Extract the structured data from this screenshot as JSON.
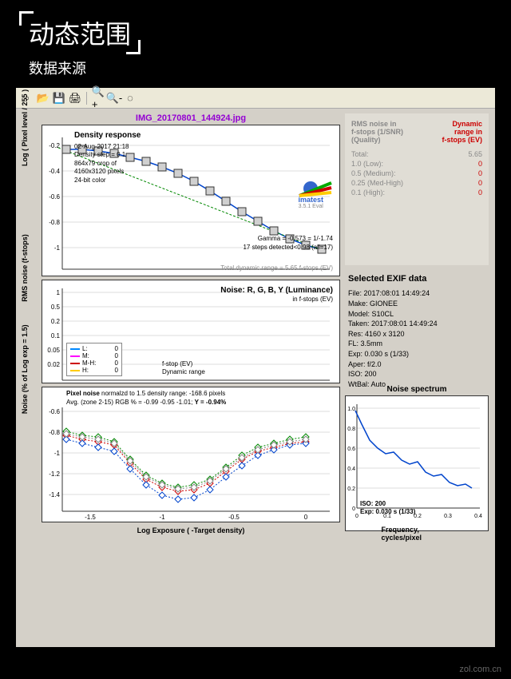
{
  "header": {
    "title": "动态范围",
    "subtitle": "数据来源"
  },
  "filename": "IMG_20170801_144924.jpg",
  "watermark": "zol.com.cn",
  "chart1": {
    "ylabel": "Log ( Pixel level / 255 )",
    "title": "Density response",
    "meta": [
      "02-Aug-2017 21:18",
      "Density step = 0.1",
      "864x79 crop of",
      "4160x3120 pixels",
      "24-bit color"
    ],
    "gamma": "Gamma = -0.573 = 1/-1.74",
    "steps": "17 steps detected<0.98 (all=17)",
    "dr": "Total dynamic range = 5.65 f-stops (EV)",
    "logo": "imatest",
    "logosub": "3.5.1 Eval",
    "yticks": [
      "-0.2",
      "-0.4",
      "-0.6",
      "-0.8",
      "-1"
    ],
    "data": [
      [
        20,
        30
      ],
      [
        40,
        30
      ],
      [
        60,
        32
      ],
      [
        80,
        35
      ],
      [
        100,
        40
      ],
      [
        120,
        45
      ],
      [
        140,
        52
      ],
      [
        160,
        60
      ],
      [
        180,
        70
      ],
      [
        200,
        82
      ],
      [
        220,
        95
      ],
      [
        240,
        108
      ],
      [
        260,
        120
      ],
      [
        280,
        132
      ],
      [
        300,
        142
      ],
      [
        320,
        150
      ],
      [
        340,
        155
      ]
    ],
    "sq_fill": "#d0d0d0",
    "line_col": "#0044cc",
    "dash_col": "#008800"
  },
  "chart2": {
    "ylabel": "RMS noise (f-stops)",
    "title": "Noise: R, G, B, Y (Luminance)",
    "sub": "in f-stops (EV)",
    "yticks": [
      "1",
      "0.5",
      "0.2",
      "0.1",
      "0.05",
      "0.02"
    ],
    "legend": [
      {
        "c": "#0088ff",
        "l": "L:",
        "v": "0"
      },
      {
        "c": "#ff00ff",
        "l": "M:",
        "v": "0"
      },
      {
        "c": "#cc0000",
        "l": "M-H:",
        "v": "0"
      },
      {
        "c": "#ffcc00",
        "l": "H:",
        "v": "0"
      }
    ],
    "fs": "f-stop (EV)",
    "dr": "Dynamic range"
  },
  "chart3": {
    "ylabel": "Noise (% of Log exp = 1.5)",
    "xlabel": "Log Exposure ( -Target density)",
    "title": "Pixel noise",
    "titlesub": "normalzd to 1.5 density range: -168.6 pixels",
    "avg": "Avg. (zone 2-15) RGB % = -0.99 -0.95 -1.01;",
    "avgY": "Y = -0.94%",
    "yticks": [
      "-0.6",
      "-0.8",
      "-1",
      "-1.2",
      "-1.4"
    ],
    "xticks": [
      "-1.5",
      "-1",
      "-0.5",
      "0"
    ],
    "series": {
      "r": {
        "c": "#cc0000",
        "d": [
          [
            30,
            40
          ],
          [
            50,
            45
          ],
          [
            70,
            48
          ],
          [
            90,
            52
          ],
          [
            110,
            75
          ],
          [
            130,
            95
          ],
          [
            150,
            105
          ],
          [
            170,
            110
          ],
          [
            190,
            108
          ],
          [
            210,
            100
          ],
          [
            230,
            85
          ],
          [
            250,
            70
          ],
          [
            270,
            60
          ],
          [
            290,
            55
          ],
          [
            310,
            50
          ],
          [
            330,
            48
          ]
        ]
      },
      "g": {
        "c": "#008800",
        "d": [
          [
            30,
            35
          ],
          [
            50,
            40
          ],
          [
            70,
            42
          ],
          [
            90,
            48
          ],
          [
            110,
            70
          ],
          [
            130,
            90
          ],
          [
            150,
            100
          ],
          [
            170,
            105
          ],
          [
            190,
            102
          ],
          [
            210,
            95
          ],
          [
            230,
            80
          ],
          [
            250,
            65
          ],
          [
            270,
            55
          ],
          [
            290,
            50
          ],
          [
            310,
            45
          ],
          [
            330,
            42
          ]
        ]
      },
      "b": {
        "c": "#0044cc",
        "d": [
          [
            30,
            45
          ],
          [
            50,
            50
          ],
          [
            70,
            55
          ],
          [
            90,
            60
          ],
          [
            110,
            82
          ],
          [
            130,
            102
          ],
          [
            150,
            115
          ],
          [
            170,
            120
          ],
          [
            190,
            118
          ],
          [
            210,
            108
          ],
          [
            230,
            92
          ],
          [
            250,
            78
          ],
          [
            270,
            65
          ],
          [
            290,
            58
          ],
          [
            310,
            52
          ],
          [
            330,
            50
          ]
        ]
      },
      "y": {
        "c": "#888888",
        "d": [
          [
            30,
            38
          ],
          [
            50,
            42
          ],
          [
            70,
            45
          ],
          [
            90,
            50
          ],
          [
            110,
            72
          ],
          [
            130,
            92
          ],
          [
            150,
            102
          ],
          [
            170,
            107
          ],
          [
            190,
            105
          ],
          [
            210,
            97
          ],
          [
            230,
            82
          ],
          [
            250,
            68
          ],
          [
            270,
            58
          ],
          [
            290,
            52
          ],
          [
            310,
            48
          ],
          [
            330,
            45
          ]
        ]
      }
    }
  },
  "rightPanel": {
    "h1": "RMS noise in\nf-stops (1/SNR)\n(Quality)",
    "h2": "Dynamic\nrange in\nf-stops (EV)",
    "rows": [
      {
        "l": "Total:",
        "v": "5.65",
        "red": false
      },
      {
        "l": "1.0   (Low):",
        "v": "0",
        "red": true
      },
      {
        "l": "0.5   (Medium):",
        "v": "0",
        "red": true
      },
      {
        "l": "0.25 (Med-High)",
        "v": "0",
        "red": true
      },
      {
        "l": "0.1   (High):",
        "v": "0",
        "red": true
      }
    ]
  },
  "exif": {
    "title": "Selected EXIF data",
    "rows": [
      "File:  2017:08:01 14:49:24",
      "Make:  GIONEE",
      "Model:  S10CL",
      "Taken:  2017:08:01 14:49:24",
      "Res:  4160 x 3120",
      "FL:  3.5mm",
      "Exp:  0.030 s  (1/33)",
      "Aper:  f/2.0",
      "ISO:  200",
      "WtBal: Auto"
    ]
  },
  "spectrum": {
    "title": "Noise spectrum",
    "xlabel": "Frequency, cycles/pixel",
    "yticks": [
      "1.0",
      "0.8",
      "0.6",
      "0.4",
      "0.2",
      "0"
    ],
    "xticks": [
      "0",
      "0.1",
      "0.2",
      "0.3",
      "0.4"
    ],
    "iso": "ISO:   200",
    "exp": "Exp:   0.030 s   (1/33)",
    "line_col": "#0044cc",
    "data": [
      [
        12,
        18
      ],
      [
        20,
        35
      ],
      [
        30,
        55
      ],
      [
        40,
        65
      ],
      [
        50,
        72
      ],
      [
        60,
        70
      ],
      [
        70,
        80
      ],
      [
        80,
        85
      ],
      [
        90,
        82
      ],
      [
        100,
        95
      ],
      [
        110,
        100
      ],
      [
        120,
        98
      ],
      [
        130,
        108
      ],
      [
        140,
        112
      ],
      [
        150,
        110
      ],
      [
        158,
        115
      ]
    ]
  }
}
